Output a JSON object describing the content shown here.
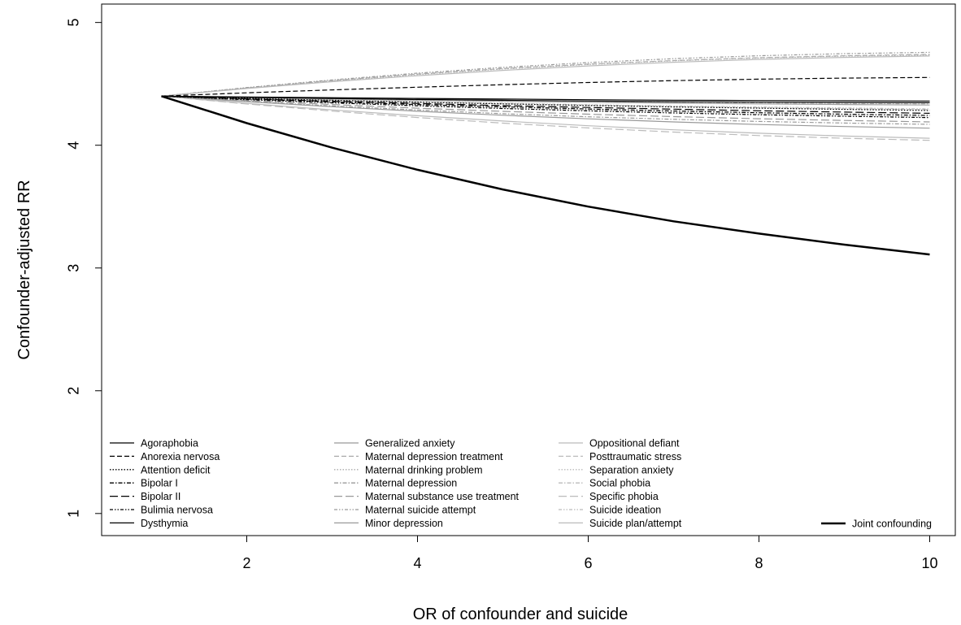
{
  "chart_data": {
    "type": "line",
    "title": "",
    "xlabel": "OR of confounder and suicide",
    "ylabel": "Confounder-adjusted RR",
    "xlim": [
      0.3,
      10.3
    ],
    "ylim": [
      0.82,
      5.15
    ],
    "xticks": [
      2,
      4,
      6,
      8,
      10
    ],
    "yticks": [
      1,
      2,
      3,
      4,
      5
    ],
    "grid": false,
    "legend_position": "bottom",
    "x": [
      1,
      2,
      3,
      4,
      5,
      6,
      7,
      8,
      9,
      10
    ],
    "series": [
      {
        "name": "Agoraphobia",
        "color": "#000000",
        "dash": "",
        "values": [
          4.4,
          4.393,
          4.387,
          4.381,
          4.376,
          4.371,
          4.367,
          4.364,
          4.362,
          4.36
        ]
      },
      {
        "name": "Anorexia nervosa",
        "color": "#000000",
        "dash": "6,3",
        "values": [
          4.4,
          4.427,
          4.451,
          4.473,
          4.493,
          4.511,
          4.526,
          4.538,
          4.547,
          4.552
        ]
      },
      {
        "name": "Attention deficit",
        "color": "#000000",
        "dash": "1.5,2",
        "values": [
          4.4,
          4.382,
          4.366,
          4.351,
          4.337,
          4.324,
          4.312,
          4.302,
          4.292,
          4.283
        ]
      },
      {
        "name": "Bipolar I",
        "color": "#000000",
        "dash": "5,2,1.5,2",
        "values": [
          4.4,
          4.376,
          4.353,
          4.332,
          4.313,
          4.295,
          4.279,
          4.265,
          4.253,
          4.243
        ]
      },
      {
        "name": "Bipolar II",
        "color": "#000000",
        "dash": "10,4",
        "values": [
          4.4,
          4.378,
          4.358,
          4.34,
          4.323,
          4.308,
          4.294,
          4.281,
          4.27,
          4.26
        ]
      },
      {
        "name": "Bulimia nervosa",
        "color": "#000000",
        "dash": "4,2,1.5,2,1.5,2",
        "values": [
          4.4,
          4.371,
          4.345,
          4.321,
          4.299,
          4.28,
          4.263,
          4.248,
          4.236,
          4.225
        ]
      },
      {
        "name": "Dysthymia",
        "color": "#000000",
        "dash": "",
        "values": [
          4.4,
          4.39,
          4.381,
          4.373,
          4.366,
          4.36,
          4.355,
          4.351,
          4.348,
          4.346
        ]
      },
      {
        "name": "Generalized anxiety",
        "color": "#999999",
        "dash": "",
        "values": [
          4.4,
          4.388,
          4.377,
          4.367,
          4.358,
          4.35,
          4.343,
          4.337,
          4.332,
          4.328
        ]
      },
      {
        "name": "Maternal depression treatment",
        "color": "#aaaaaa",
        "dash": "6,3",
        "values": [
          4.4,
          4.467,
          4.527,
          4.579,
          4.624,
          4.661,
          4.69,
          4.713,
          4.729,
          4.74
        ]
      },
      {
        "name": "Maternal drinking problem",
        "color": "#aaaaaa",
        "dash": "1.5,2",
        "values": [
          4.4,
          4.465,
          4.524,
          4.576,
          4.621,
          4.658,
          4.688,
          4.711,
          4.726,
          4.735
        ]
      },
      {
        "name": "Maternal depression",
        "color": "#999999",
        "dash": "5,2,1.5,2",
        "values": [
          4.4,
          4.358,
          4.32,
          4.287,
          4.257,
          4.232,
          4.211,
          4.194,
          4.181,
          4.17
        ]
      },
      {
        "name": "Maternal substance use treatment",
        "color": "#999999",
        "dash": "10,4",
        "values": [
          4.4,
          4.364,
          4.332,
          4.302,
          4.276,
          4.253,
          4.233,
          4.216,
          4.202,
          4.19
        ]
      },
      {
        "name": "Maternal suicide attempt",
        "color": "#999999",
        "dash": "4,2,1.5,2,1.5,2",
        "values": [
          4.4,
          4.47,
          4.532,
          4.587,
          4.634,
          4.673,
          4.705,
          4.729,
          4.746,
          4.757
        ]
      },
      {
        "name": "Minor depression",
        "color": "#999999",
        "dash": "",
        "values": [
          4.4,
          4.355,
          4.314,
          4.277,
          4.244,
          4.215,
          4.19,
          4.169,
          4.152,
          4.139
        ]
      },
      {
        "name": "Oppositional defiant",
        "color": "#bbbbbb",
        "dash": "",
        "values": [
          4.4,
          4.341,
          4.288,
          4.24,
          4.197,
          4.159,
          4.126,
          4.098,
          4.075,
          4.057
        ]
      },
      {
        "name": "Posttraumatic stress",
        "color": "#bbbbbb",
        "dash": "6,3",
        "values": [
          4.4,
          4.383,
          4.367,
          4.352,
          4.338,
          4.326,
          4.315,
          4.305,
          4.297,
          4.29
        ]
      },
      {
        "name": "Separation anxiety",
        "color": "#bbbbbb",
        "dash": "1.5,2",
        "values": [
          4.4,
          4.373,
          4.348,
          4.325,
          4.304,
          4.285,
          4.268,
          4.253,
          4.24,
          4.229
        ]
      },
      {
        "name": "Social phobia",
        "color": "#bbbbbb",
        "dash": "5,2,1.5,2",
        "values": [
          4.4,
          4.389,
          4.379,
          4.37,
          4.362,
          4.355,
          4.349,
          4.344,
          4.34,
          4.337
        ]
      },
      {
        "name": "Specific phobia",
        "color": "#bbbbbb",
        "dash": "10,4",
        "values": [
          4.4,
          4.336,
          4.278,
          4.226,
          4.18,
          4.141,
          4.107,
          4.079,
          4.057,
          4.04
        ]
      },
      {
        "name": "Suicide ideation",
        "color": "#bbbbbb",
        "dash": "4,2,1.5,2,1.5,2",
        "values": [
          4.4,
          4.384,
          4.369,
          4.355,
          4.342,
          4.33,
          4.32,
          4.311,
          4.303,
          4.296
        ]
      },
      {
        "name": "Suicide plan/attempt",
        "color": "#bbbbbb",
        "dash": "",
        "values": [
          4.4,
          4.462,
          4.518,
          4.567,
          4.61,
          4.646,
          4.676,
          4.699,
          4.716,
          4.727
        ]
      },
      {
        "name": "Joint confounding",
        "color": "#000000",
        "dash": "",
        "width": 2.5,
        "values": [
          4.4,
          4.18,
          3.98,
          3.8,
          3.64,
          3.5,
          3.38,
          3.28,
          3.19,
          3.11
        ]
      }
    ]
  }
}
